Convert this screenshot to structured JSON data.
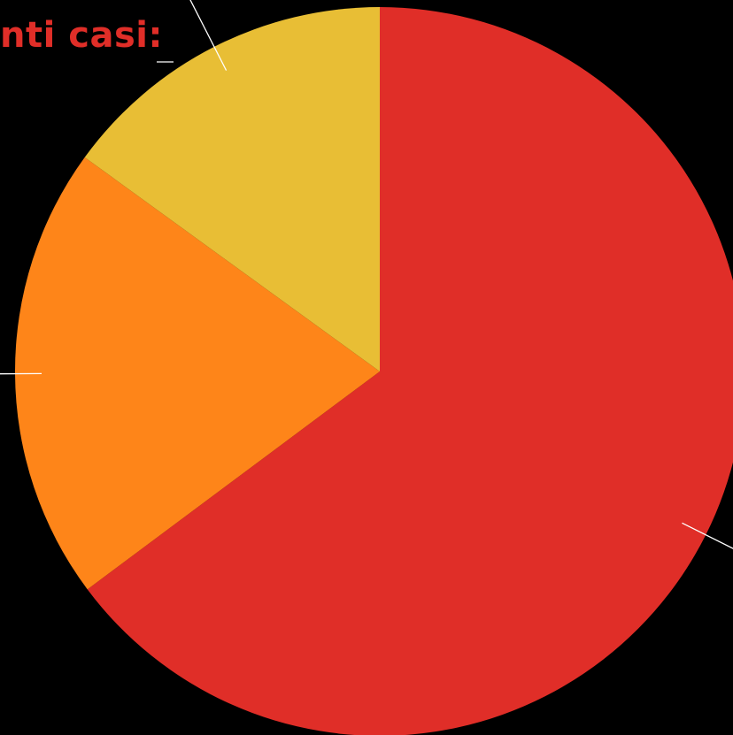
{
  "chart_data": {
    "type": "pie",
    "title": "nti casi:",
    "start_angle_deg": 0,
    "direction": "clockwise",
    "slices": [
      {
        "value": 64.8,
        "color": "#E02E28"
      },
      {
        "value": 20.2,
        "color": "#FE8519"
      },
      {
        "value": 15.0,
        "color": "#E8BE35"
      }
    ],
    "leader_line_color": "#FFFFFF",
    "title_color": "#E02E28",
    "background": "#000000"
  }
}
